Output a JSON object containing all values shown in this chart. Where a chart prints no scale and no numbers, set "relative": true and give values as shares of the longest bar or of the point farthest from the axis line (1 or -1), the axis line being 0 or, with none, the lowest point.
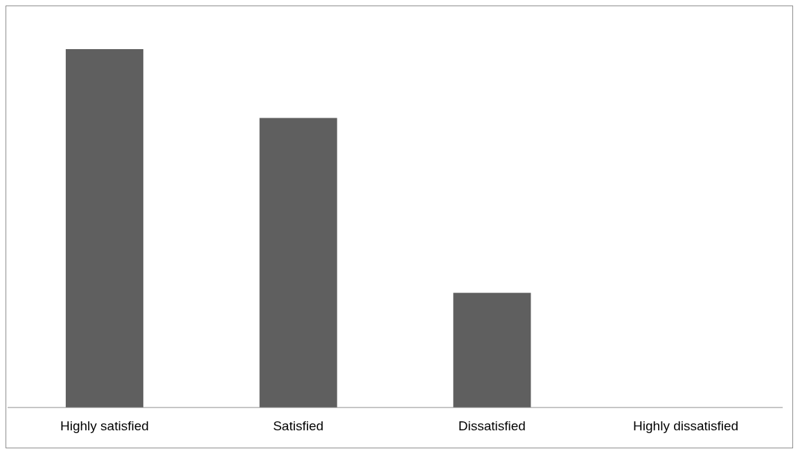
{
  "chart_data": {
    "type": "bar",
    "relative": true,
    "categories": [
      "Highly satisfied",
      "Satisfied",
      "Dissatisfied",
      "Highly dissatisfied"
    ],
    "values": [
      1,
      0.808,
      0.32,
      0
    ],
    "color": "#5f5f5f"
  }
}
